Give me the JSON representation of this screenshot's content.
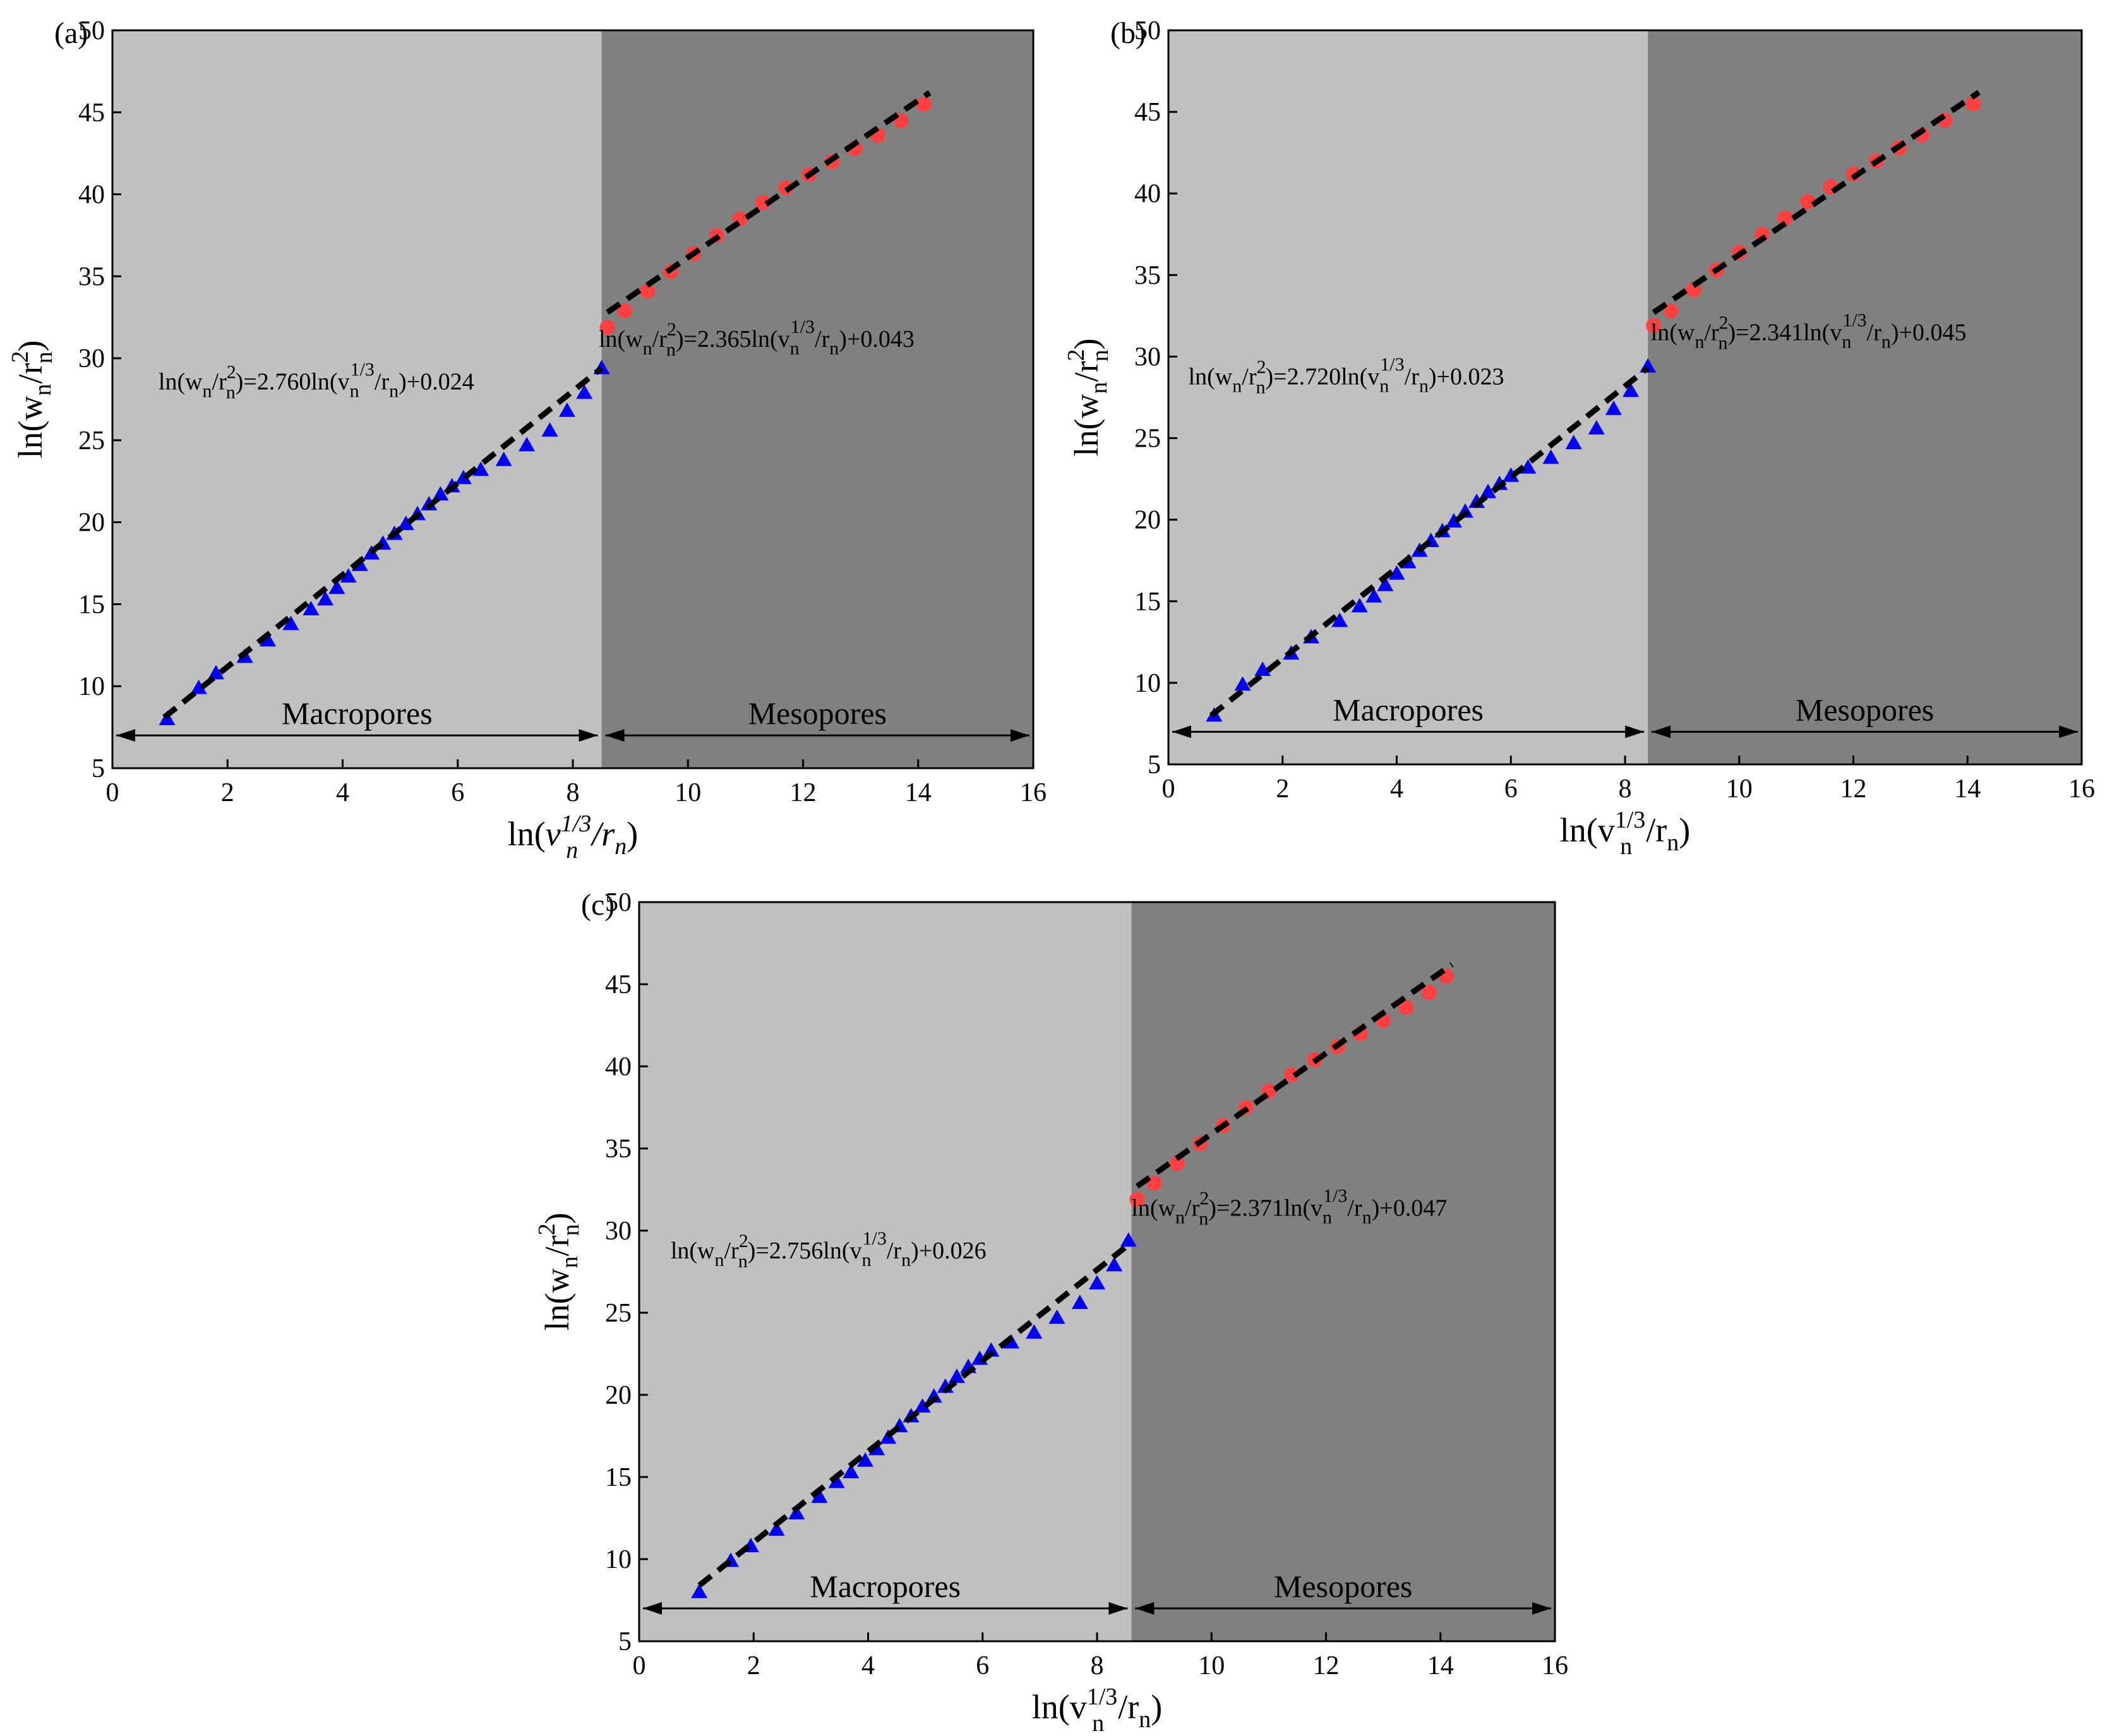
{
  "chart_data": [
    {
      "type": "scatter",
      "panel_label": "(a)",
      "xlim": [
        0,
        16
      ],
      "ylim": [
        5,
        50
      ],
      "xticks": [
        0,
        2,
        4,
        6,
        8,
        10,
        12,
        14,
        16
      ],
      "yticks": [
        5,
        10,
        15,
        20,
        25,
        30,
        35,
        40,
        45,
        50
      ],
      "xlabel": {
        "pre": "ln(",
        "base": "v",
        "sup": "1/3",
        "sub": "n",
        "mid": "/r",
        "sub2": "n",
        "post": ")",
        "italic": true
      },
      "ylabel": {
        "pre": "ln(w",
        "sub": "n",
        "mid": "/r",
        "sup": "2",
        "sub2": "n",
        "post": ")"
      },
      "boundary_x": 8.5,
      "regions": {
        "left": "Macropores",
        "right": "Mesopores",
        "left_color": "#c0c0c0",
        "right_color": "#808080"
      },
      "fits": [
        {
          "slope": 2.76,
          "intercept": 0.024,
          "x_range": [
            0.9,
            8.5
          ],
          "y_range": [
            8.1,
            29.4
          ],
          "equation": {
            "lhs_pre": "ln(w",
            "lhs_sub": "n",
            "lhs_mid": "/r",
            "lhs_sup": "2",
            "lhs_sub2": "n",
            "eq": ")=2.760ln(v",
            "rhs_sub": "n",
            "rhs_sup": "1/3",
            "rhs_mid": "/r",
            "rhs_sub2": "n",
            "rhs_post": ")+0.024"
          },
          "eq_pos": [
            0.8,
            28.1
          ]
        },
        {
          "slope": 2.365,
          "intercept": 0.043,
          "x_range": [
            8.6,
            14.2
          ],
          "y_range": [
            32.8,
            46.2
          ],
          "equation": {
            "lhs_pre": "ln(w",
            "lhs_sub": "n",
            "lhs_mid": "/r",
            "lhs_sup": "2",
            "lhs_sub2": "n",
            "eq": ")=2.365ln(v",
            "rhs_sub": "n",
            "rhs_sup": "1/3",
            "rhs_mid": "/r",
            "rhs_sub2": "n",
            "rhs_post": ")+0.043"
          },
          "eq_pos": [
            8.45,
            30.7
          ]
        }
      ],
      "series": [
        {
          "name": "",
          "marker": "triangle",
          "color": "#0000ff",
          "x": [
            0.95,
            1.5,
            1.8,
            2.3,
            2.7,
            3.1,
            3.45,
            3.7,
            3.9,
            4.1,
            4.3,
            4.5,
            4.7,
            4.9,
            5.1,
            5.3,
            5.5,
            5.7,
            5.9,
            6.1,
            6.4,
            6.8,
            7.2,
            7.6,
            7.9,
            8.2,
            8.5
          ],
          "y": [
            8.0,
            9.9,
            10.8,
            11.8,
            12.8,
            13.8,
            14.7,
            15.3,
            16.0,
            16.7,
            17.4,
            18.1,
            18.7,
            19.3,
            19.9,
            20.5,
            21.1,
            21.7,
            22.2,
            22.7,
            23.2,
            23.8,
            24.7,
            25.6,
            26.8,
            27.9,
            29.4
          ]
        },
        {
          "name": "",
          "marker": "circle",
          "color": "#ff4040",
          "x": [
            8.6,
            8.9,
            9.3,
            9.7,
            10.1,
            10.5,
            10.9,
            11.3,
            11.7,
            12.1,
            12.5,
            12.9,
            13.3,
            13.7,
            14.1
          ],
          "y": [
            31.9,
            32.9,
            34.1,
            35.3,
            36.4,
            37.5,
            38.5,
            39.5,
            40.4,
            41.2,
            42.0,
            42.8,
            43.6,
            44.5,
            45.5
          ]
        }
      ]
    },
    {
      "type": "scatter",
      "panel_label": "(b)",
      "xlim": [
        0,
        16
      ],
      "ylim": [
        5,
        50
      ],
      "xticks": [
        0,
        2,
        4,
        6,
        8,
        10,
        12,
        14,
        16
      ],
      "yticks": [
        5,
        10,
        15,
        20,
        25,
        30,
        35,
        40,
        45,
        50
      ],
      "xlabel": {
        "pre": "ln(",
        "base": "v",
        "sup": "1/3",
        "sub": "n",
        "mid": "/r",
        "sub2": "n",
        "post": ")",
        "italic": false
      },
      "ylabel": {
        "pre": "ln(w",
        "sub": "n",
        "mid": "/r",
        "sup": "2",
        "sub2": "n",
        "post": ")"
      },
      "boundary_x": 8.4,
      "regions": {
        "left": "Macropores",
        "right": "Mesopores",
        "left_color": "#c0c0c0",
        "right_color": "#808080"
      },
      "fits": [
        {
          "slope": 2.72,
          "intercept": 0.023,
          "x_range": [
            0.75,
            8.4
          ],
          "y_range": [
            8.0,
            29.3
          ],
          "equation": {
            "lhs_pre": "ln(w",
            "lhs_sub": "n",
            "lhs_mid": "/r",
            "lhs_sup": "2",
            "lhs_sub2": "n",
            "eq": ")=2.720ln(v",
            "rhs_sub": "n",
            "rhs_sup": "1/3",
            "rhs_mid": "/r",
            "rhs_sub2": "n",
            "rhs_post": ")+0.023"
          },
          "eq_pos": [
            0.35,
            28.3
          ]
        },
        {
          "slope": 2.341,
          "intercept": 0.045,
          "x_range": [
            8.5,
            14.2
          ],
          "y_range": [
            32.7,
            46.2
          ],
          "equation": {
            "lhs_pre": "ln(w",
            "lhs_sub": "n",
            "lhs_mid": "/r",
            "lhs_sup": "2",
            "lhs_sub2": "n",
            "eq": ")=2.341ln(v",
            "rhs_sub": "n",
            "rhs_sup": "1/3",
            "rhs_mid": "/r",
            "rhs_sub2": "n",
            "rhs_post": ")+0.045"
          },
          "eq_pos": [
            8.45,
            31.0
          ]
        }
      ],
      "series": [
        {
          "name": "",
          "marker": "triangle",
          "color": "#0000ff",
          "x": [
            0.8,
            1.3,
            1.65,
            2.15,
            2.5,
            3.0,
            3.35,
            3.6,
            3.8,
            4.0,
            4.2,
            4.4,
            4.6,
            4.8,
            5.0,
            5.2,
            5.4,
            5.6,
            5.8,
            6.0,
            6.3,
            6.7,
            7.1,
            7.5,
            7.8,
            8.1,
            8.4
          ],
          "y": [
            8.0,
            9.9,
            10.8,
            11.8,
            12.8,
            13.8,
            14.7,
            15.3,
            16.0,
            16.7,
            17.4,
            18.1,
            18.7,
            19.3,
            19.9,
            20.5,
            21.1,
            21.7,
            22.2,
            22.7,
            23.2,
            23.8,
            24.7,
            25.6,
            26.8,
            27.9,
            29.4
          ]
        },
        {
          "name": "",
          "marker": "circle",
          "color": "#ff4040",
          "x": [
            8.5,
            8.8,
            9.2,
            9.6,
            10.0,
            10.4,
            10.8,
            11.2,
            11.6,
            12.0,
            12.4,
            12.8,
            13.2,
            13.6,
            14.1
          ],
          "y": [
            31.9,
            32.8,
            34.1,
            35.3,
            36.4,
            37.5,
            38.5,
            39.5,
            40.4,
            41.2,
            42.0,
            42.8,
            43.6,
            44.5,
            45.5
          ]
        }
      ]
    },
    {
      "type": "scatter",
      "panel_label": "(c)",
      "xlim": [
        0,
        16
      ],
      "ylim": [
        5,
        50
      ],
      "xticks": [
        0,
        2,
        4,
        6,
        8,
        10,
        12,
        14,
        16
      ],
      "yticks": [
        5,
        10,
        15,
        20,
        25,
        30,
        35,
        40,
        45,
        50
      ],
      "xlabel": {
        "pre": "ln(",
        "base": "v",
        "sup": "1/3",
        "sub": "n",
        "mid": "/r",
        "sub2": "n",
        "post": ")",
        "italic": false
      },
      "ylabel": {
        "pre": "ln(w",
        "sub": "n",
        "mid": "/r",
        "sup": "2",
        "sub2": "n",
        "post": ")"
      },
      "boundary_x": 8.6,
      "regions": {
        "left": "Macropores",
        "right": "Mesopores",
        "left_color": "#c0c0c0",
        "right_color": "#808080"
      },
      "fits": [
        {
          "slope": 2.756,
          "intercept": 0.026,
          "x_range": [
            1.05,
            8.5
          ],
          "y_range": [
            8.4,
            29.0
          ],
          "equation": {
            "lhs_pre": "ln(w",
            "lhs_sub": "n",
            "lhs_mid": "/r",
            "lhs_sup": "2",
            "lhs_sub2": "n",
            "eq": ")=2.756ln(v",
            "rhs_sub": "n",
            "rhs_sup": "1/3",
            "rhs_mid": "/r",
            "rhs_sub2": "n",
            "rhs_post": ")+0.026"
          },
          "eq_pos": [
            0.55,
            28.3
          ]
        },
        {
          "slope": 2.371,
          "intercept": 0.047,
          "x_range": [
            8.7,
            14.2
          ],
          "y_range": [
            32.7,
            46.2
          ],
          "equation": {
            "lhs_pre": "ln(w",
            "lhs_sub": "n",
            "lhs_mid": "/r",
            "lhs_sup": "2",
            "lhs_sub2": "n",
            "eq": ")=2.371ln(v",
            "rhs_sub": "n",
            "rhs_sup": "1/3",
            "rhs_mid": "/r",
            "rhs_sub2": "n",
            "rhs_post": ")+0.047"
          },
          "eq_pos": [
            8.6,
            30.9
          ]
        }
      ],
      "series": [
        {
          "name": "",
          "marker": "triangle",
          "color": "#0000ff",
          "x": [
            1.05,
            1.6,
            1.95,
            2.4,
            2.75,
            3.15,
            3.45,
            3.7,
            3.95,
            4.15,
            4.35,
            4.55,
            4.75,
            4.95,
            5.15,
            5.35,
            5.55,
            5.75,
            5.95,
            6.15,
            6.5,
            6.9,
            7.3,
            7.7,
            8.0,
            8.3,
            8.55
          ],
          "y": [
            8.0,
            9.9,
            10.8,
            11.8,
            12.8,
            13.8,
            14.7,
            15.3,
            16.0,
            16.7,
            17.4,
            18.1,
            18.7,
            19.3,
            19.9,
            20.5,
            21.1,
            21.7,
            22.2,
            22.7,
            23.2,
            23.8,
            24.7,
            25.6,
            26.8,
            27.9,
            29.4
          ]
        },
        {
          "name": "",
          "marker": "circle",
          "color": "#ff4040",
          "x": [
            8.7,
            9.0,
            9.4,
            9.8,
            10.2,
            10.6,
            11.0,
            11.4,
            11.8,
            12.2,
            12.6,
            13.0,
            13.4,
            13.8,
            14.1
          ],
          "y": [
            31.9,
            32.9,
            34.1,
            35.3,
            36.4,
            37.5,
            38.5,
            39.5,
            40.4,
            41.2,
            42.0,
            42.8,
            43.6,
            44.5,
            45.5
          ]
        }
      ]
    }
  ]
}
